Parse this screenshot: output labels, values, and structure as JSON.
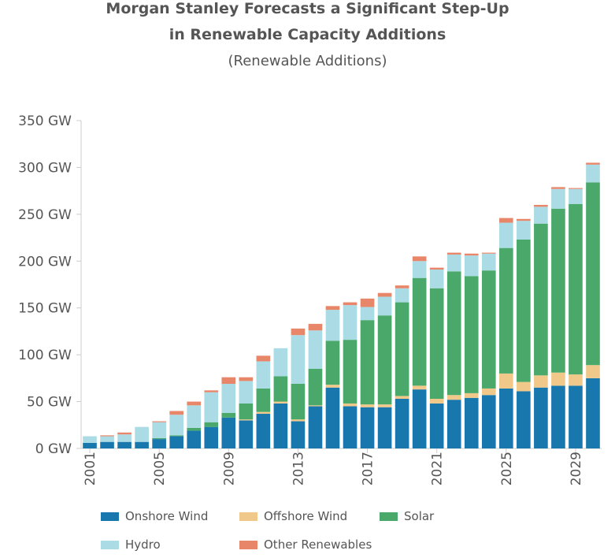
{
  "colors": {
    "onshore": "#1878ae",
    "offshore": "#f0c98a",
    "solar": "#4aa86a",
    "hydro": "#abdbe4",
    "other": "#e8866a"
  },
  "chart_data": {
    "type": "bar",
    "stacked": true,
    "title_line1": "Morgan Stanley Forecasts a Significant Step-Up",
    "title_line2": "in Renewable Capacity Additions",
    "subtitle": "(Renewable Additions)",
    "xlabel": "",
    "ylabel": "",
    "ylim": [
      0,
      350
    ],
    "yticks": [
      "0 GW",
      "50 GW",
      "100 GW",
      "150 GW",
      "200 GW",
      "250 GW",
      "300 GW",
      "350 GW"
    ],
    "xtick_labels": [
      "2001",
      "2005",
      "2009",
      "2013",
      "2017",
      "2021",
      "2025",
      "2029"
    ],
    "grid": false,
    "legend_position": "bottom",
    "categories": [
      "2001",
      "2002",
      "2003",
      "2004",
      "2005",
      "2006",
      "2007",
      "2008",
      "2009",
      "2010",
      "2011",
      "2012",
      "2013",
      "2014",
      "2015",
      "2016",
      "2017",
      "2018",
      "2019",
      "2020",
      "2021",
      "2022",
      "2023",
      "2024",
      "2025",
      "2026",
      "2027",
      "2028",
      "2029",
      "2030"
    ],
    "series": [
      {
        "name": "Onshore Wind",
        "color_key": "onshore",
        "values": [
          6,
          7,
          7,
          7,
          10,
          13,
          19,
          23,
          33,
          30,
          37,
          48,
          29,
          45,
          65,
          45,
          44,
          44,
          53,
          63,
          48,
          52,
          54,
          57,
          64,
          61,
          65,
          67,
          67,
          75
        ]
      },
      {
        "name": "Offshore Wind",
        "color_key": "offshore",
        "values": [
          0,
          0,
          0,
          0,
          0,
          0,
          0,
          0,
          0,
          1,
          2,
          2,
          2,
          1,
          3,
          3,
          3,
          3,
          3,
          4,
          5,
          5,
          5,
          7,
          16,
          10,
          13,
          14,
          12,
          14
        ]
      },
      {
        "name": "Solar",
        "color_key": "solar",
        "values": [
          0,
          0,
          0,
          0,
          1,
          1,
          3,
          5,
          5,
          17,
          25,
          27,
          38,
          39,
          47,
          68,
          90,
          95,
          100,
          115,
          118,
          132,
          125,
          126,
          134,
          152,
          162,
          175,
          182,
          195
        ]
      },
      {
        "name": "Hydro",
        "color_key": "hydro",
        "values": [
          7,
          6,
          8,
          16,
          17,
          22,
          24,
          32,
          31,
          24,
          29,
          30,
          52,
          41,
          33,
          37,
          14,
          20,
          15,
          18,
          20,
          18,
          22,
          18,
          27,
          20,
          18,
          21,
          16,
          19
        ]
      },
      {
        "name": "Other Renewables",
        "color_key": "other",
        "values": [
          0,
          1,
          2,
          0,
          1,
          4,
          4,
          2,
          7,
          4,
          6,
          0,
          7,
          7,
          4,
          3,
          9,
          4,
          3,
          5,
          2,
          2,
          2,
          1,
          5,
          2,
          2,
          2,
          1,
          2
        ]
      }
    ]
  }
}
